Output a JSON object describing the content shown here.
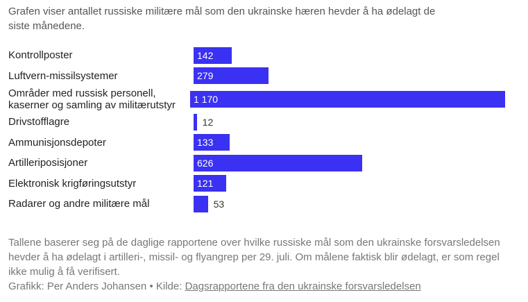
{
  "chart_data": {
    "type": "bar",
    "orientation": "horizontal",
    "title": "Grafen viser antallet russiske militære mål som den ukrainske hæren hevder å ha ødelagt de siste månedene.",
    "categories": [
      "Kontrollposter",
      "Luftvern-missilsystemer",
      "Områder med russisk personell, kaserner og samling av militærutstyr",
      "Drivstofflagre",
      "Ammunisjonsdepoter",
      "Artilleriposisjoner",
      "Elektronisk krigføringsutstyr",
      "Radarer og andre militære mål"
    ],
    "values": [
      142,
      279,
      1170,
      12,
      133,
      626,
      121,
      53
    ],
    "value_labels": [
      "142",
      "279",
      "1 170",
      "12",
      "133",
      "626",
      "121",
      "53"
    ],
    "color": "#3a31f2",
    "note": "Tallene baserer seg på de daglige rapportene over hvilke russiske mål som den ukrainske forsvarsledelsen hevder å ha ødelagt i artilleri-, missil- og flyangrep per 29. juli. Om målene faktisk blir ødelagt, er som regel ikke mulig å få verifisert.",
    "credit": "Grafikk: Per Anders Johansen • Kilde:",
    "source_link": "Dagsrapportene fra den ukrainske forsvarsledelsen"
  }
}
